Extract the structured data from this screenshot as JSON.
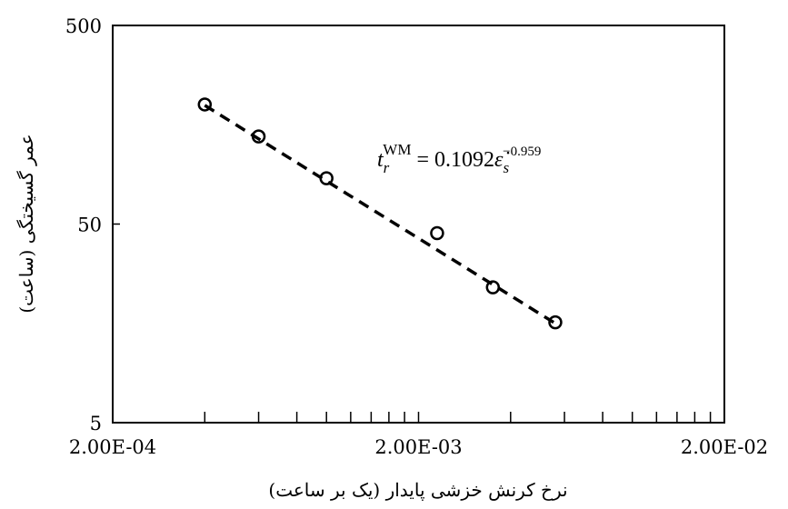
{
  "chart_data": {
    "type": "scatter",
    "x_label": "نرخ کرنش خزشی پایدار (یک بر ساعت)",
    "y_label": "عمر گسیختگی (ساعت)",
    "xlog": true,
    "ylog": true,
    "xlim": [
      0.0002,
      0.02
    ],
    "ylim": [
      5,
      500
    ],
    "xticks": [
      {
        "value": 0.0002,
        "label": "2.00E-04"
      },
      {
        "value": 0.002,
        "label": "2.00E-03"
      },
      {
        "value": 0.02,
        "label": "2.00E-02"
      }
    ],
    "xminorticks": [
      0.0004,
      0.0006,
      0.0008,
      0.001,
      0.0012,
      0.0014,
      0.0016,
      0.0018,
      0.004,
      0.006,
      0.008,
      0.01,
      0.012,
      0.014,
      0.016,
      0.018
    ],
    "yticks": [
      5,
      50,
      500
    ],
    "series": [
      {
        "kind": "points",
        "color": "#000000",
        "x": [
          0.0004,
          0.0006,
          0.001,
          0.0023,
          0.0035,
          0.0056
        ],
        "values": [
          200,
          138,
          85,
          45,
          24,
          16
        ]
      },
      {
        "kind": "fit",
        "color": "#000000",
        "x": [
          0.0004,
          0.0056
        ],
        "values": [
          198,
          15.8
        ]
      }
    ],
    "annotation": {
      "base": "t",
      "sub": "r",
      "sup": "WM",
      "rhs": " = 0.1092",
      "symbol": "ε̇",
      "sub2": "s",
      "sup2": "−0.959"
    }
  }
}
